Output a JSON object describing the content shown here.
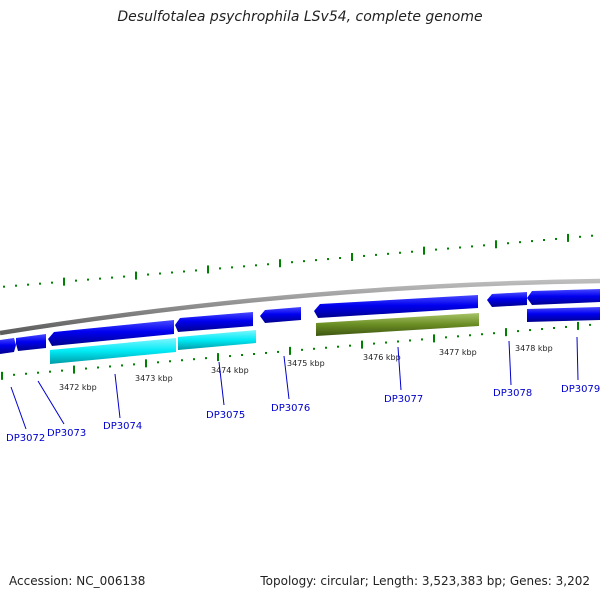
{
  "title": "Desulfotalea psychrophila LSv54, complete genome",
  "footer": {
    "accession": "Accession: NC_006138",
    "summary": "Topology: circular; Length: 3,523,383 bp; Genes: 3,202"
  },
  "kbp_labels": [
    "3472 kbp",
    "3473 kbp",
    "3474 kbp",
    "3475 kbp",
    "3476 kbp",
    "3477 kbp",
    "3478 kbp"
  ],
  "gene_labels": [
    "DP3072",
    "DP3073",
    "DP3074",
    "DP3075",
    "DP3076",
    "DP3077",
    "DP3078",
    "DP3079"
  ],
  "colors": {
    "forward_gene": "#0000ee",
    "reverse_gene": "#0000ee",
    "cds_highlight": "#00e5ee",
    "rna_feature": "#6b8e23",
    "backbone": "#8c8c8c",
    "gc_ticks": "#008000",
    "label": "#0000cc",
    "text": "#222222"
  }
}
